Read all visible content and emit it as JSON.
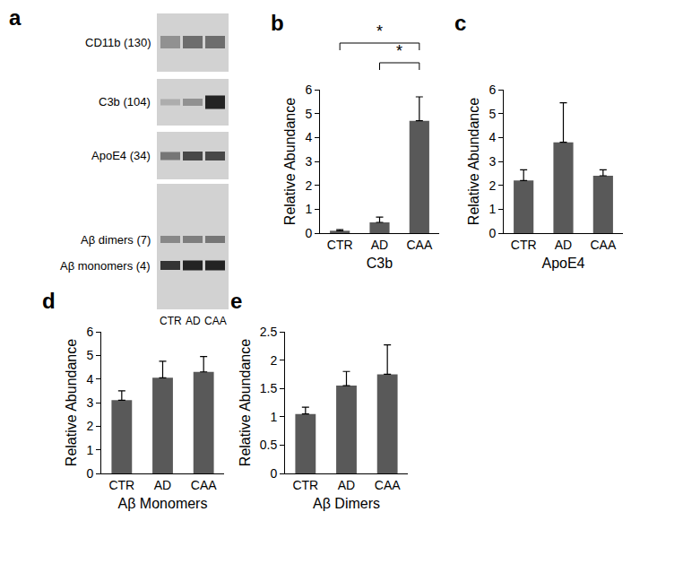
{
  "blot": {
    "panel_label": "a",
    "rows": [
      "CD11b (130)",
      "C3b (104)",
      "ApoE4 (34)",
      "Aβ dimers (7)",
      "Aβ monomers (4)"
    ],
    "lanes": [
      "CTR",
      "AD",
      "CAA"
    ]
  },
  "chart_data": [
    {
      "type": "bar",
      "panel_label": "b",
      "x_label": "C3b",
      "y_label": "Relative Abundance",
      "categories": [
        "CTR",
        "AD",
        "CAA"
      ],
      "values": [
        0.1,
        0.45,
        4.7
      ],
      "errors": [
        0.05,
        0.22,
        1.0
      ],
      "color": "#595959",
      "ylim": [
        0,
        6
      ],
      "yticks": [
        0,
        1,
        2,
        3,
        4,
        5,
        6
      ],
      "significance": [
        {
          "from": "CTR",
          "to": "CAA",
          "text": "*"
        },
        {
          "from": "AD",
          "to": "CAA",
          "text": "*"
        }
      ]
    },
    {
      "type": "bar",
      "panel_label": "c",
      "x_label": "ApoE4",
      "y_label": "Relative Abundance",
      "categories": [
        "CTR",
        "AD",
        "CAA"
      ],
      "values": [
        2.2,
        3.8,
        2.4
      ],
      "errors": [
        0.45,
        1.65,
        0.25
      ],
      "color": "#595959",
      "ylim": [
        0,
        6
      ],
      "yticks": [
        0,
        1,
        2,
        3,
        4,
        5,
        6
      ]
    },
    {
      "type": "bar",
      "panel_label": "d",
      "x_label": "Aβ Monomers",
      "y_label": "Relative Abundance",
      "categories": [
        "CTR",
        "AD",
        "CAA"
      ],
      "values": [
        3.1,
        4.05,
        4.3
      ],
      "errors": [
        0.4,
        0.7,
        0.65
      ],
      "color": "#595959",
      "ylim": [
        0,
        6
      ],
      "yticks": [
        0,
        1,
        2,
        3,
        4,
        5,
        6
      ]
    },
    {
      "type": "bar",
      "panel_label": "e",
      "x_label": "Aβ Dimers",
      "y_label": "Relative Abundance",
      "categories": [
        "CTR",
        "AD",
        "CAA"
      ],
      "values": [
        1.05,
        1.55,
        1.75
      ],
      "errors": [
        0.12,
        0.25,
        0.52
      ],
      "color": "#595959",
      "ylim": [
        0,
        2.5
      ],
      "yticks": [
        0,
        0.5,
        1,
        1.5,
        2,
        2.5
      ]
    }
  ]
}
